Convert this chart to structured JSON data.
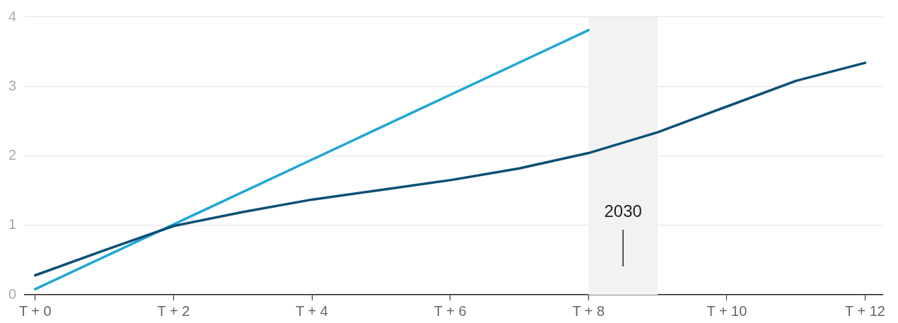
{
  "chart_data": {
    "type": "line",
    "series": [
      {
        "color": "#0b4f75",
        "x": [
          0,
          1,
          2,
          3,
          4,
          5,
          6,
          7,
          8,
          9,
          10,
          11,
          12
        ],
        "values": [
          0.28,
          0.64,
          0.99,
          1.19,
          1.37,
          1.51,
          1.65,
          1.82,
          2.04,
          2.34,
          2.71,
          3.08,
          3.34
        ]
      },
      {
        "color": "#1ea7d6",
        "x": [
          0,
          8
        ],
        "values": [
          0.08,
          3.81
        ]
      }
    ],
    "xlim": [
      -0.15,
      12.25
    ],
    "xticks": [
      {
        "value": 0,
        "label": "T + 0"
      },
      {
        "value": 2,
        "label": "T + 2"
      },
      {
        "value": 4,
        "label": "T + 4"
      },
      {
        "value": 6,
        "label": "T + 6"
      },
      {
        "value": 8,
        "label": "T + 8"
      },
      {
        "value": 10,
        "label": "T + 10"
      },
      {
        "value": 12,
        "label": "T + 12"
      }
    ],
    "ylim": [
      0,
      4
    ],
    "yticks": [
      0,
      1,
      2,
      3,
      4
    ],
    "grid": "y",
    "legend": false,
    "marker": "none",
    "line_style": "solid",
    "bands": [
      {
        "axis": "x",
        "from": 8,
        "to": 9,
        "color": "#f2f2f2",
        "label": "2030"
      }
    ]
  }
}
